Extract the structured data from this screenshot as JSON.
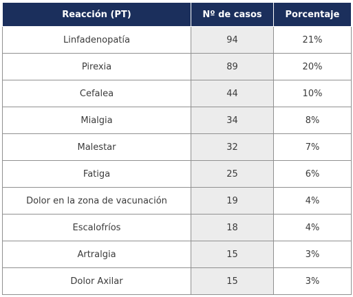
{
  "table": {
    "headers": [
      "Reacción (PT)",
      "Nº de casos",
      "Porcentaje"
    ],
    "rows": [
      [
        "Linfadenopatía",
        "94",
        "21%"
      ],
      [
        "Pirexia",
        "89",
        "20%"
      ],
      [
        "Cefalea",
        "44",
        "10%"
      ],
      [
        "Mialgia",
        "34",
        "8%"
      ],
      [
        "Malestar",
        "32",
        "7%"
      ],
      [
        "Fatiga",
        "25",
        "6%"
      ],
      [
        "Dolor en la zona de vacunación",
        "19",
        "4%"
      ],
      [
        "Escalofríos",
        "18",
        "4%"
      ],
      [
        "Artralgia",
        "15",
        "3%"
      ],
      [
        "Dolor Axilar",
        "15",
        "3%"
      ]
    ]
  },
  "colors": {
    "header_bg": "#1b2f5c",
    "header_text": "#ffffff",
    "highlight_column_bg": "#ececec",
    "border": "#8f8f8f"
  }
}
